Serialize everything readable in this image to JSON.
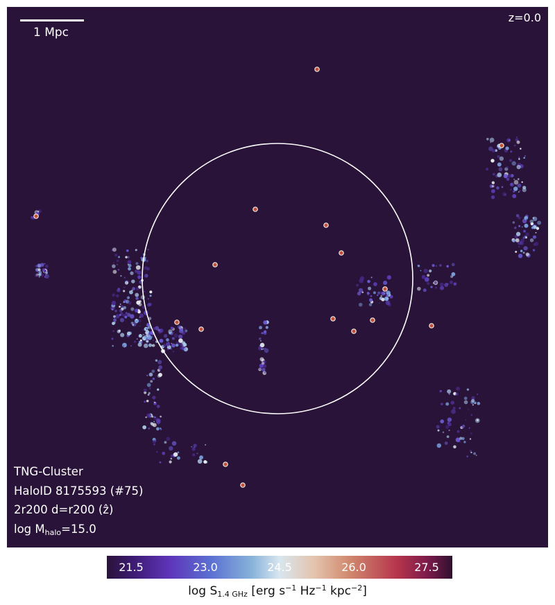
{
  "scale_bar": {
    "label": "1 Mpc"
  },
  "redshift": "z=0.0",
  "info": {
    "simulation": "TNG-Cluster",
    "halo": "HaloID 8175593 (#75)",
    "projection": "2r200 d=r200 (ẑ)",
    "mass_prefix": "log M",
    "mass_sub": "halo",
    "mass_value": "=15.0"
  },
  "colorbar": {
    "ticks": [
      "21.5",
      "23.0",
      "24.5",
      "26.0",
      "27.5"
    ],
    "label_prefix": "log S",
    "label_sub": "1.4 GHz",
    "label_units_a": " [erg s",
    "label_sup_a": "−1",
    "label_units_b": " Hz",
    "label_sup_b": "−1",
    "label_units_c": " kpc",
    "label_sup_c": "−2",
    "label_end": "]"
  },
  "colors": {
    "background": "#2a1339",
    "circle": "#ffffff"
  }
}
